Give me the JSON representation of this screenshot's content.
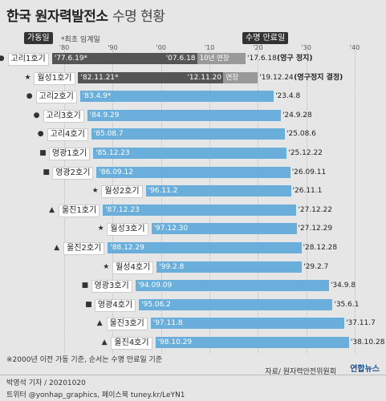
{
  "header": {
    "title": "한국 원자력발전소",
    "subtitle": "수명 현황",
    "chip_start": "가동일",
    "chip_start_note": "*최초 임계일",
    "chip_end": "수명 만료일"
  },
  "axis": {
    "ticks": [
      "'80",
      "'90",
      "'00",
      "'10",
      "'20",
      "'30",
      "'40"
    ]
  },
  "rows": [
    {
      "name": "고리1호기",
      "marker": "●",
      "start": "'77.6.19*",
      "end": "'17.6.18",
      "mid_end": "'07.6.18",
      "mid_tag": "10년 연장",
      "end_note": "(영구 정지)"
    },
    {
      "name": "월성1호기",
      "marker": "★",
      "start": "'82.11.21*",
      "end": "'19.12.24",
      "mid_end": "'12.11.20",
      "mid_tag": "연장",
      "end_note": "(영구정지 결정)"
    },
    {
      "name": "고리2호기",
      "marker": "●",
      "start": "'83.4.9*",
      "end": "'23.4.8"
    },
    {
      "name": "고리3호기",
      "marker": "●",
      "start": "'84.9.29",
      "end": "'24.9.28"
    },
    {
      "name": "고리4호기",
      "marker": "●",
      "start": "'85.08.7",
      "end": "'25.08.6"
    },
    {
      "name": "영광1호기",
      "marker": "■",
      "start": "'85.12.23",
      "end": "'25.12.22"
    },
    {
      "name": "영광2호기",
      "marker": "■",
      "start": "'86.09.12",
      "end": "'26.09.11"
    },
    {
      "name": "월성2호기",
      "marker": "★",
      "start": "'96.11.2",
      "end": "'26.11.1"
    },
    {
      "name": "울진1호기",
      "marker": "▲",
      "start": "'87.12.23",
      "end": "'27.12.22"
    },
    {
      "name": "월성3호기",
      "marker": "★",
      "start": "'97.12.30",
      "end": "'27.12.29"
    },
    {
      "name": "울진2호기",
      "marker": "▲",
      "start": "'88.12.29",
      "end": "'28.12.28"
    },
    {
      "name": "월성4호기",
      "marker": "★",
      "start": "'99.2.8",
      "end": "'29.2.7"
    },
    {
      "name": "영광3호기",
      "marker": "■",
      "start": "'94.09.09",
      "end": "'34.9.8"
    },
    {
      "name": "영광4호기",
      "marker": "■",
      "start": "'95.06.2",
      "end": "'35.6.1"
    },
    {
      "name": "울진3호기",
      "marker": "▲",
      "start": "'97.11.8",
      "end": "'37.11.7"
    },
    {
      "name": "울진4호기",
      "marker": "▲",
      "start": "'98.10.29",
      "end": "'38.10.28"
    }
  ],
  "chart_data": {
    "type": "bar",
    "orientation": "horizontal-range",
    "xlim": [
      1978,
      2040
    ],
    "series": [
      {
        "name": "고리1호기",
        "start": 1977.46,
        "end": 2017.46,
        "extension_from": 2007.46
      },
      {
        "name": "월성1호기",
        "start": 1982.89,
        "end": 2019.98,
        "extension_from": 2012.89
      },
      {
        "name": "고리2호기",
        "start": 1983.27,
        "end": 2023.27
      },
      {
        "name": "고리3호기",
        "start": 1984.74,
        "end": 2024.74
      },
      {
        "name": "고리4호기",
        "start": 1985.59,
        "end": 2025.59
      },
      {
        "name": "영광1호기",
        "start": 1985.97,
        "end": 2025.97
      },
      {
        "name": "영광2호기",
        "start": 1986.69,
        "end": 2026.69
      },
      {
        "name": "월성2호기",
        "start": 1996.83,
        "end": 2026.83
      },
      {
        "name": "울진1호기",
        "start": 1987.97,
        "end": 2027.97
      },
      {
        "name": "월성3호기",
        "start": 1997.99,
        "end": 2027.99
      },
      {
        "name": "울진2호기",
        "start": 1988.99,
        "end": 2028.99
      },
      {
        "name": "월성4호기",
        "start": 1999.1,
        "end": 2029.1
      },
      {
        "name": "영광3호기",
        "start": 1994.69,
        "end": 2034.69
      },
      {
        "name": "영광4호기",
        "start": 1995.42,
        "end": 2035.42
      },
      {
        "name": "울진3호기",
        "start": 1997.85,
        "end": 2037.85
      },
      {
        "name": "울진4호기",
        "start": 1998.82,
        "end": 2038.82
      }
    ]
  },
  "colors": {
    "bar": "#6aaedc",
    "bar_dark": "#555555",
    "bar_ext": "#999999",
    "chip": "#333333"
  },
  "footer": {
    "note": "※2000년 이전 가동 기준, 순서는 수명 만료일 기준",
    "source": "자료/ 원자력안전위원회",
    "byline": "박영석 기자 /  20201020",
    "social": "트위터 @yonhap_graphics, 페이스북 tuney.kr/LeYN1",
    "logo": "연합뉴스"
  }
}
